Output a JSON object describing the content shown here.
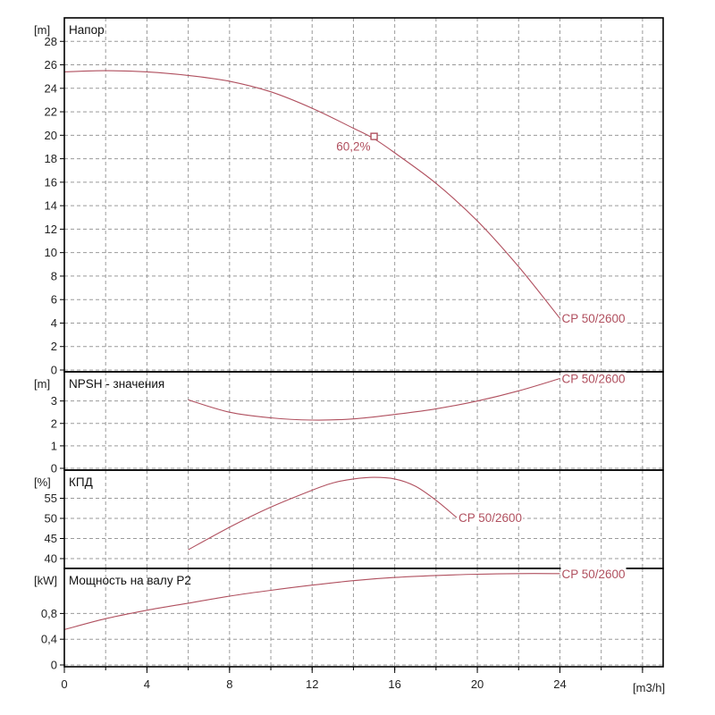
{
  "curve_color": "#b0505f",
  "x_axis": {
    "unit": "[m3/h]",
    "min": 0,
    "max": 29,
    "ticks": [
      0,
      4,
      8,
      12,
      16,
      20,
      24,
      28
    ],
    "tick_labels": [
      "0",
      "4",
      "8",
      "12",
      "16",
      "20",
      "24",
      ""
    ],
    "grid_step": 2
  },
  "panels": {
    "head": {
      "title": "Напор",
      "unit": "[m]"
    },
    "npsh": {
      "title": "NPSH - значения",
      "unit": "[m]"
    },
    "eff": {
      "title": "КПД",
      "unit": "[%]"
    },
    "power": {
      "title": "Мощность на валу P2",
      "unit": "[kW]"
    }
  },
  "chart_data": [
    {
      "type": "line",
      "title": "Напор",
      "ylabel": "[m]",
      "xlabel": "[m3/h]",
      "ylim": [
        0,
        30
      ],
      "yticks": [
        0,
        2,
        4,
        6,
        8,
        10,
        12,
        14,
        16,
        18,
        20,
        22,
        24,
        26,
        28
      ],
      "grid": true,
      "series": [
        {
          "name": "CP 50/2600",
          "x": [
            0,
            2,
            4,
            6,
            8,
            10,
            12,
            14,
            15,
            16,
            18,
            20,
            22,
            24
          ],
          "y": [
            25.4,
            25.5,
            25.4,
            25.1,
            24.6,
            23.7,
            22.3,
            20.6,
            19.7,
            18.5,
            15.9,
            12.7,
            8.8,
            4.4
          ]
        }
      ],
      "annotation": {
        "text": "60,2%",
        "x": 15,
        "y": 19.9
      }
    },
    {
      "type": "line",
      "title": "NPSH - значения",
      "ylabel": "[m]",
      "ylim": [
        0,
        4.3
      ],
      "yticks": [
        0,
        1,
        2,
        3
      ],
      "grid": true,
      "series": [
        {
          "name": "CP 50/2600",
          "x": [
            6,
            8,
            10,
            12,
            14,
            16,
            18,
            20,
            22,
            24
          ],
          "y": [
            3.05,
            2.5,
            2.25,
            2.15,
            2.2,
            2.4,
            2.65,
            3.0,
            3.45,
            4.0
          ]
        }
      ]
    },
    {
      "type": "line",
      "title": "КПД",
      "ylabel": "[%]",
      "ylim": [
        38,
        62
      ],
      "yticks": [
        40,
        45,
        50,
        55
      ],
      "grid": true,
      "series": [
        {
          "name": "CP 50/2600",
          "x": [
            6,
            8,
            10,
            12,
            13,
            14,
            15,
            16,
            17,
            18,
            19
          ],
          "y": [
            42.2,
            47.8,
            52.8,
            57.0,
            58.8,
            59.8,
            60.2,
            59.8,
            58.0,
            54.5,
            50.2
          ]
        }
      ]
    },
    {
      "type": "line",
      "title": "Мощность на валу P2",
      "ylabel": "[kW]",
      "ylim": [
        0,
        1.5
      ],
      "yticks": [
        0,
        0.4,
        0.8
      ],
      "ytick_labels": [
        "0",
        "0,4",
        "0,8"
      ],
      "grid": true,
      "series": [
        {
          "name": "CP 50/2600",
          "x": [
            0,
            2,
            4,
            6,
            8,
            10,
            12,
            14,
            16,
            18,
            20,
            22,
            24
          ],
          "y": [
            0.55,
            0.72,
            0.85,
            0.96,
            1.07,
            1.16,
            1.24,
            1.31,
            1.36,
            1.39,
            1.41,
            1.42,
            1.42
          ]
        }
      ]
    }
  ]
}
